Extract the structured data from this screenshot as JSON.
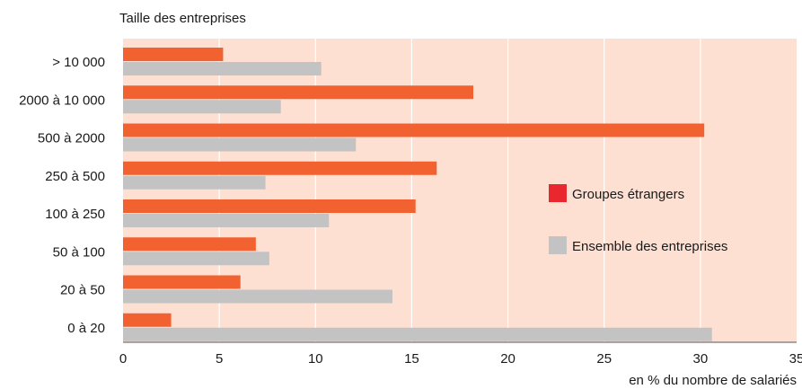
{
  "chart_data": {
    "type": "bar",
    "orientation": "horizontal",
    "ylabel": "Taille des entreprises",
    "xlabel": "en % du nombre de salariés",
    "categories": [
      "> 10 000",
      "2000 à 10 000",
      "500 à 2000",
      "250 à 500",
      "100 à 250",
      "50 à 100",
      "20 à 50",
      "0 à 20"
    ],
    "series": [
      {
        "name": "Groupes étrangers",
        "color": "#f26130",
        "values": [
          5.2,
          18.2,
          30.2,
          16.3,
          15.2,
          6.9,
          6.1,
          2.5
        ]
      },
      {
        "name": "Ensemble des entreprises",
        "color": "#c4c3c4",
        "values": [
          10.3,
          8.2,
          12.1,
          7.4,
          10.7,
          7.6,
          14.0,
          30.6
        ]
      }
    ],
    "xlim": [
      0,
      35
    ],
    "xticks": [
      "0",
      "5",
      "10",
      "15",
      "20",
      "25",
      "30",
      "35"
    ],
    "grid": true,
    "legend_position": "right",
    "background_color": "#fde0d2",
    "legend_colors": [
      "#e8272f",
      "#c4c3c4"
    ]
  }
}
